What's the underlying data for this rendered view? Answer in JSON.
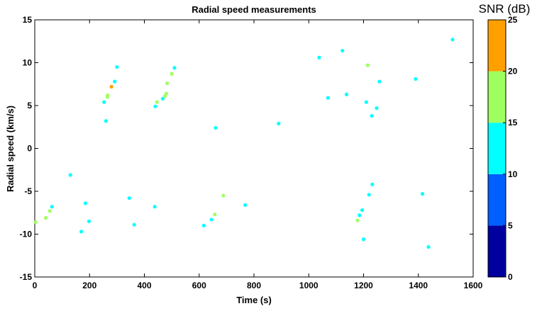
{
  "chart_data": {
    "type": "scatter",
    "title": "Radial speed measurements",
    "xlabel": "Time (s)",
    "ylabel": "Radial speed (km/s)",
    "xlim": [
      0,
      1600
    ],
    "ylim": [
      -15,
      15
    ],
    "xticks": [
      0,
      200,
      400,
      600,
      800,
      1000,
      1200,
      1400,
      1600
    ],
    "yticks": [
      -15,
      -10,
      -5,
      0,
      5,
      10,
      15
    ],
    "grid": false,
    "colorbar": {
      "title": "SNR (dB)",
      "ticks": [
        0,
        5,
        10,
        15,
        20,
        25
      ],
      "bands": [
        {
          "from": 0,
          "to": 5,
          "color": "#00009f"
        },
        {
          "from": 5,
          "to": 10,
          "color": "#005fff"
        },
        {
          "from": 10,
          "to": 15,
          "color": "#00ffff"
        },
        {
          "from": 15,
          "to": 20,
          "color": "#9fff5f"
        },
        {
          "from": 20,
          "to": 25,
          "color": "#ffa000"
        }
      ]
    },
    "points": [
      {
        "x": 3,
        "y": -8.6,
        "snr": 17
      },
      {
        "x": 40,
        "y": -8.1,
        "snr": 17
      },
      {
        "x": 55,
        "y": -7.3,
        "snr": 17
      },
      {
        "x": 63,
        "y": -6.8,
        "snr": 12
      },
      {
        "x": 130,
        "y": -3.1,
        "snr": 12
      },
      {
        "x": 170,
        "y": -9.7,
        "snr": 12
      },
      {
        "x": 185,
        "y": -6.4,
        "snr": 12
      },
      {
        "x": 198,
        "y": -8.5,
        "snr": 12
      },
      {
        "x": 253,
        "y": 5.4,
        "snr": 12
      },
      {
        "x": 260,
        "y": 3.2,
        "snr": 12
      },
      {
        "x": 265,
        "y": 6.0,
        "snr": 17
      },
      {
        "x": 266,
        "y": 6.2,
        "snr": 17
      },
      {
        "x": 280,
        "y": 7.2,
        "snr": 22
      },
      {
        "x": 292,
        "y": 7.8,
        "snr": 12
      },
      {
        "x": 300,
        "y": 9.5,
        "snr": 12
      },
      {
        "x": 345,
        "y": -5.8,
        "snr": 12
      },
      {
        "x": 363,
        "y": -8.9,
        "snr": 12
      },
      {
        "x": 438,
        "y": -6.8,
        "snr": 12
      },
      {
        "x": 440,
        "y": 4.9,
        "snr": 12
      },
      {
        "x": 446,
        "y": 5.4,
        "snr": 17
      },
      {
        "x": 467,
        "y": 5.8,
        "snr": 12
      },
      {
        "x": 475,
        "y": 6.1,
        "snr": 17
      },
      {
        "x": 480,
        "y": 6.4,
        "snr": 17
      },
      {
        "x": 483,
        "y": 7.6,
        "snr": 17
      },
      {
        "x": 500,
        "y": 8.7,
        "snr": 17
      },
      {
        "x": 510,
        "y": 9.4,
        "snr": 12
      },
      {
        "x": 617,
        "y": -9.0,
        "snr": 12
      },
      {
        "x": 645,
        "y": -8.3,
        "snr": 12
      },
      {
        "x": 657,
        "y": -7.7,
        "snr": 17
      },
      {
        "x": 660,
        "y": 2.4,
        "snr": 12
      },
      {
        "x": 688,
        "y": -5.5,
        "snr": 17
      },
      {
        "x": 768,
        "y": -6.6,
        "snr": 12
      },
      {
        "x": 890,
        "y": 2.9,
        "snr": 12
      },
      {
        "x": 1038,
        "y": 10.6,
        "snr": 12
      },
      {
        "x": 1070,
        "y": 5.9,
        "snr": 12
      },
      {
        "x": 1123,
        "y": 11.4,
        "snr": 12
      },
      {
        "x": 1138,
        "y": 6.3,
        "snr": 12
      },
      {
        "x": 1178,
        "y": -8.4,
        "snr": 17
      },
      {
        "x": 1185,
        "y": -7.8,
        "snr": 12
      },
      {
        "x": 1195,
        "y": -7.2,
        "snr": 12
      },
      {
        "x": 1200,
        "y": -10.6,
        "snr": 12
      },
      {
        "x": 1210,
        "y": 5.4,
        "snr": 12
      },
      {
        "x": 1215,
        "y": 9.7,
        "snr": 17
      },
      {
        "x": 1220,
        "y": -5.4,
        "snr": 12
      },
      {
        "x": 1230,
        "y": 3.8,
        "snr": 12
      },
      {
        "x": 1232,
        "y": -4.2,
        "snr": 12
      },
      {
        "x": 1248,
        "y": 4.7,
        "snr": 12
      },
      {
        "x": 1258,
        "y": 7.8,
        "snr": 12
      },
      {
        "x": 1390,
        "y": 8.1,
        "snr": 12
      },
      {
        "x": 1415,
        "y": -5.3,
        "snr": 12
      },
      {
        "x": 1437,
        "y": -11.5,
        "snr": 12
      },
      {
        "x": 1525,
        "y": 12.7,
        "snr": 12
      }
    ]
  }
}
